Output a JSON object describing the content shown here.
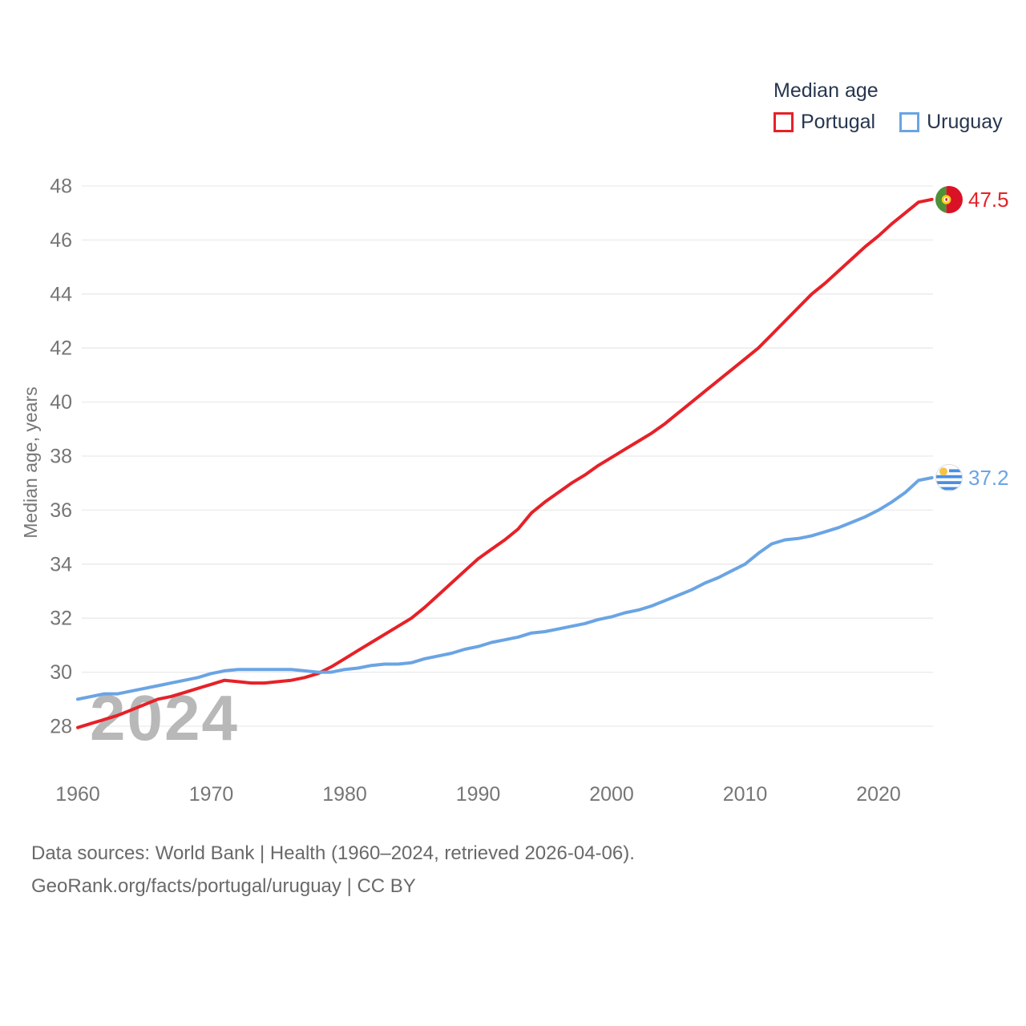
{
  "legend": {
    "title": "Median age",
    "items": [
      {
        "label": "Portugal",
        "color": "#e62128"
      },
      {
        "label": "Uruguay",
        "color": "#6aa4e4"
      }
    ]
  },
  "watermark": "2024",
  "footer": {
    "line1": "Data sources: World Bank | Health (1960–2024, retrieved 2026-04-06).",
    "line2": "GeoRank.org/facts/portugal/uruguay | CC BY"
  },
  "colors": {
    "grid": "#eaeaea",
    "tick_text": "#767676",
    "axis_title": "#767676",
    "legend_text": "#26364e",
    "watermark": "#b8b8b8",
    "footer_text": "#696969"
  },
  "chart_data": {
    "type": "line",
    "title": "Median age",
    "xlabel": "",
    "ylabel": "Median age, years",
    "grid": "horizontal",
    "legend_position": "top-right",
    "xlim": [
      1960,
      2024
    ],
    "ylim": [
      28,
      48
    ],
    "xticks": [
      1960,
      1970,
      1980,
      1990,
      2000,
      2010,
      2020
    ],
    "yticks": [
      28,
      30,
      32,
      34,
      36,
      38,
      40,
      42,
      44,
      46,
      48
    ],
    "x": [
      1960,
      1961,
      1962,
      1963,
      1964,
      1965,
      1966,
      1967,
      1968,
      1969,
      1970,
      1971,
      1972,
      1973,
      1974,
      1975,
      1976,
      1977,
      1978,
      1979,
      1980,
      1981,
      1982,
      1983,
      1984,
      1985,
      1986,
      1987,
      1988,
      1989,
      1990,
      1991,
      1992,
      1993,
      1994,
      1995,
      1996,
      1997,
      1998,
      1999,
      2000,
      2001,
      2002,
      2003,
      2004,
      2005,
      2006,
      2007,
      2008,
      2009,
      2010,
      2011,
      2012,
      2013,
      2014,
      2015,
      2016,
      2017,
      2018,
      2019,
      2020,
      2021,
      2022,
      2023,
      2024
    ],
    "series": [
      {
        "name": "Portugal",
        "color": "#e62128",
        "end_label": "47.5",
        "values": [
          27.95,
          28.1,
          28.25,
          28.4,
          28.6,
          28.8,
          29.0,
          29.1,
          29.25,
          29.4,
          29.55,
          29.7,
          29.65,
          29.6,
          29.6,
          29.65,
          29.7,
          29.8,
          29.95,
          30.2,
          30.5,
          30.8,
          31.1,
          31.4,
          31.7,
          32.0,
          32.4,
          32.85,
          33.3,
          33.75,
          34.2,
          34.55,
          34.9,
          35.3,
          35.9,
          36.3,
          36.65,
          37.0,
          37.3,
          37.65,
          37.95,
          38.25,
          38.55,
          38.85,
          39.2,
          39.6,
          40.0,
          40.4,
          40.8,
          41.2,
          41.6,
          42.0,
          42.5,
          43.0,
          43.5,
          44.0,
          44.4,
          44.85,
          45.3,
          45.75,
          46.15,
          46.6,
          47.0,
          47.4,
          47.5
        ]
      },
      {
        "name": "Uruguay",
        "color": "#6aa4e4",
        "end_label": "37.2",
        "values": [
          29.0,
          29.1,
          29.2,
          29.2,
          29.3,
          29.4,
          29.5,
          29.6,
          29.7,
          29.8,
          29.95,
          30.05,
          30.1,
          30.1,
          30.1,
          30.1,
          30.1,
          30.05,
          30.0,
          30.0,
          30.1,
          30.15,
          30.25,
          30.3,
          30.3,
          30.35,
          30.5,
          30.6,
          30.7,
          30.85,
          30.95,
          31.1,
          31.2,
          31.3,
          31.45,
          31.5,
          31.6,
          31.7,
          31.8,
          31.95,
          32.05,
          32.2,
          32.3,
          32.45,
          32.65,
          32.85,
          33.05,
          33.3,
          33.5,
          33.75,
          34.0,
          34.4,
          34.75,
          34.9,
          34.95,
          35.05,
          35.2,
          35.35,
          35.55,
          35.75,
          36.0,
          36.3,
          36.65,
          37.1,
          37.2
        ]
      }
    ]
  }
}
